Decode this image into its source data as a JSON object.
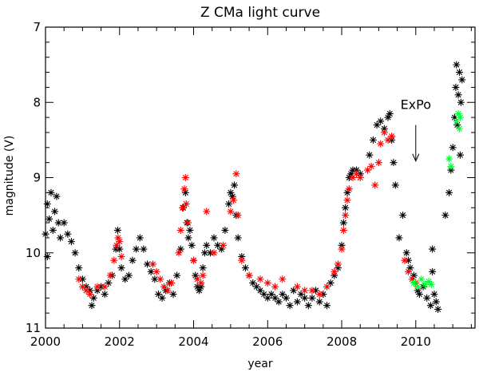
{
  "chart_data": {
    "type": "scatter",
    "title": "Z CMa light curve",
    "xlabel": "year",
    "ylabel": "magnitude (V)",
    "xlim": [
      2000,
      2011.6
    ],
    "ylim": [
      11,
      7
    ],
    "y_inverted": true,
    "x_ticks": [
      "2000",
      "2002",
      "2004",
      "2006",
      "2008",
      "2010"
    ],
    "x_tick_values": [
      2000,
      2002,
      2004,
      2006,
      2008,
      2010
    ],
    "y_ticks": [
      "7",
      "8",
      "9",
      "10",
      "11"
    ],
    "y_tick_values": [
      7,
      8,
      9,
      10,
      11
    ],
    "marker": "asterisk",
    "series": [
      {
        "name": "black",
        "color": "#000000",
        "values": [
          [
            2000.0,
            9.75
          ],
          [
            2000.05,
            9.35
          ],
          [
            2000.1,
            9.55
          ],
          [
            2000.15,
            9.2
          ],
          [
            2000.2,
            9.7
          ],
          [
            2000.25,
            9.45
          ],
          [
            2000.3,
            9.25
          ],
          [
            2000.35,
            9.6
          ],
          [
            2000.4,
            9.8
          ],
          [
            2000.05,
            10.05
          ],
          [
            2000.5,
            9.6
          ],
          [
            2000.6,
            9.75
          ],
          [
            2000.7,
            9.85
          ],
          [
            2000.8,
            10.0
          ],
          [
            2000.9,
            10.2
          ],
          [
            2001.0,
            10.35
          ],
          [
            2001.1,
            10.45
          ],
          [
            2001.2,
            10.5
          ],
          [
            2001.25,
            10.7
          ],
          [
            2001.3,
            10.6
          ],
          [
            2001.4,
            10.5
          ],
          [
            2001.5,
            10.45
          ],
          [
            2001.6,
            10.55
          ],
          [
            2001.7,
            10.4
          ],
          [
            2001.8,
            10.3
          ],
          [
            2001.9,
            9.95
          ],
          [
            2001.95,
            9.7
          ],
          [
            2002.0,
            9.95
          ],
          [
            2002.05,
            10.2
          ],
          [
            2002.15,
            10.35
          ],
          [
            2002.25,
            10.3
          ],
          [
            2002.35,
            10.1
          ],
          [
            2002.45,
            9.95
          ],
          [
            2002.55,
            9.8
          ],
          [
            2002.65,
            9.95
          ],
          [
            2002.75,
            10.15
          ],
          [
            2002.85,
            10.25
          ],
          [
            2002.95,
            10.35
          ],
          [
            2003.05,
            10.55
          ],
          [
            2003.15,
            10.6
          ],
          [
            2003.25,
            10.5
          ],
          [
            2003.35,
            10.4
          ],
          [
            2003.45,
            10.55
          ],
          [
            2003.55,
            10.3
          ],
          [
            2003.65,
            9.95
          ],
          [
            2003.72,
            9.4
          ],
          [
            2003.78,
            9.2
          ],
          [
            2003.82,
            9.6
          ],
          [
            2003.86,
            9.8
          ],
          [
            2003.9,
            9.7
          ],
          [
            2003.95,
            9.9
          ],
          [
            2004.0,
            10.1
          ],
          [
            2004.05,
            10.3
          ],
          [
            2004.1,
            10.45
          ],
          [
            2004.15,
            10.5
          ],
          [
            2004.2,
            10.45
          ],
          [
            2004.25,
            10.2
          ],
          [
            2004.3,
            10.0
          ],
          [
            2004.35,
            9.9
          ],
          [
            2004.45,
            10.0
          ],
          [
            2004.55,
            9.8
          ],
          [
            2004.65,
            9.9
          ],
          [
            2004.75,
            9.95
          ],
          [
            2004.85,
            9.7
          ],
          [
            2004.95,
            9.35
          ],
          [
            2005.0,
            9.2
          ],
          [
            2005.05,
            9.25
          ],
          [
            2005.1,
            9.1
          ],
          [
            2005.15,
            9.5
          ],
          [
            2005.2,
            9.8
          ],
          [
            2005.3,
            10.05
          ],
          [
            2005.4,
            10.2
          ],
          [
            2005.5,
            10.3
          ],
          [
            2005.6,
            10.4
          ],
          [
            2005.7,
            10.45
          ],
          [
            2005.8,
            10.5
          ],
          [
            2005.9,
            10.55
          ],
          [
            2006.0,
            10.6
          ],
          [
            2006.1,
            10.55
          ],
          [
            2006.2,
            10.6
          ],
          [
            2006.3,
            10.65
          ],
          [
            2006.4,
            10.55
          ],
          [
            2006.5,
            10.6
          ],
          [
            2006.6,
            10.7
          ],
          [
            2006.7,
            10.5
          ],
          [
            2006.8,
            10.65
          ],
          [
            2006.9,
            10.55
          ],
          [
            2007.0,
            10.6
          ],
          [
            2007.1,
            10.7
          ],
          [
            2007.2,
            10.6
          ],
          [
            2007.3,
            10.5
          ],
          [
            2007.4,
            10.65
          ],
          [
            2007.5,
            10.55
          ],
          [
            2007.6,
            10.7
          ],
          [
            2007.7,
            10.4
          ],
          [
            2007.8,
            10.3
          ],
          [
            2007.9,
            10.2
          ],
          [
            2008.0,
            9.9
          ],
          [
            2008.05,
            9.6
          ],
          [
            2008.1,
            9.4
          ],
          [
            2008.15,
            9.2
          ],
          [
            2008.2,
            9.0
          ],
          [
            2008.25,
            8.95
          ],
          [
            2008.3,
            8.9
          ],
          [
            2008.4,
            8.9
          ],
          [
            2008.5,
            8.95
          ],
          [
            2008.75,
            8.7
          ],
          [
            2008.85,
            8.5
          ],
          [
            2008.95,
            8.3
          ],
          [
            2009.05,
            8.25
          ],
          [
            2009.15,
            8.35
          ],
          [
            2009.25,
            8.2
          ],
          [
            2009.3,
            8.15
          ],
          [
            2009.35,
            8.5
          ],
          [
            2009.4,
            8.8
          ],
          [
            2009.45,
            9.1
          ],
          [
            2009.55,
            9.8
          ],
          [
            2009.65,
            9.5
          ],
          [
            2009.75,
            10.0
          ],
          [
            2009.8,
            10.1
          ],
          [
            2009.85,
            10.2
          ],
          [
            2009.95,
            10.3
          ],
          [
            2010.05,
            10.5
          ],
          [
            2010.1,
            10.55
          ],
          [
            2010.2,
            10.45
          ],
          [
            2010.3,
            10.6
          ],
          [
            2010.4,
            10.7
          ],
          [
            2010.5,
            10.55
          ],
          [
            2010.55,
            10.65
          ],
          [
            2010.6,
            10.75
          ],
          [
            2010.45,
            10.25
          ],
          [
            2010.45,
            9.95
          ],
          [
            2010.8,
            9.5
          ],
          [
            2010.9,
            9.2
          ],
          [
            2010.95,
            8.9
          ],
          [
            2011.0,
            8.6
          ],
          [
            2011.05,
            8.2
          ],
          [
            2011.08,
            7.8
          ],
          [
            2011.1,
            7.5
          ],
          [
            2011.12,
            8.3
          ],
          [
            2011.15,
            7.9
          ],
          [
            2011.18,
            7.6
          ],
          [
            2011.2,
            8.7
          ],
          [
            2011.22,
            8.0
          ],
          [
            2011.25,
            7.7
          ]
        ]
      },
      {
        "name": "red",
        "color": "#ff0000",
        "values": [
          [
            2000.9,
            10.35
          ],
          [
            2001.0,
            10.45
          ],
          [
            2001.1,
            10.5
          ],
          [
            2001.2,
            10.55
          ],
          [
            2001.4,
            10.45
          ],
          [
            2001.6,
            10.45
          ],
          [
            2001.75,
            10.3
          ],
          [
            2001.85,
            10.1
          ],
          [
            2001.92,
            9.9
          ],
          [
            2001.96,
            9.8
          ],
          [
            2002.0,
            9.85
          ],
          [
            2002.05,
            10.05
          ],
          [
            2002.9,
            10.15
          ],
          [
            2003.0,
            10.25
          ],
          [
            2003.1,
            10.35
          ],
          [
            2003.2,
            10.45
          ],
          [
            2003.3,
            10.5
          ],
          [
            2003.4,
            10.4
          ],
          [
            2003.6,
            10.0
          ],
          [
            2003.65,
            9.7
          ],
          [
            2003.7,
            9.4
          ],
          [
            2003.75,
            9.15
          ],
          [
            2003.78,
            9.0
          ],
          [
            2003.8,
            9.35
          ],
          [
            2003.85,
            9.6
          ],
          [
            2004.0,
            10.1
          ],
          [
            2004.1,
            10.35
          ],
          [
            2004.2,
            10.4
          ],
          [
            2004.25,
            10.3
          ],
          [
            2004.35,
            9.45
          ],
          [
            2004.55,
            10.0
          ],
          [
            2004.8,
            9.9
          ],
          [
            2005.0,
            9.45
          ],
          [
            2005.08,
            9.3
          ],
          [
            2005.15,
            8.95
          ],
          [
            2005.2,
            9.5
          ],
          [
            2005.3,
            10.1
          ],
          [
            2005.5,
            10.3
          ],
          [
            2005.8,
            10.35
          ],
          [
            2006.0,
            10.4
          ],
          [
            2006.2,
            10.45
          ],
          [
            2006.4,
            10.35
          ],
          [
            2006.8,
            10.45
          ],
          [
            2007.0,
            10.5
          ],
          [
            2007.2,
            10.5
          ],
          [
            2007.4,
            10.55
          ],
          [
            2007.6,
            10.45
          ],
          [
            2007.8,
            10.25
          ],
          [
            2007.9,
            10.15
          ],
          [
            2008.0,
            9.95
          ],
          [
            2008.05,
            9.7
          ],
          [
            2008.1,
            9.5
          ],
          [
            2008.15,
            9.3
          ],
          [
            2008.2,
            9.15
          ],
          [
            2008.3,
            9.0
          ],
          [
            2008.4,
            8.95
          ],
          [
            2008.5,
            9.0
          ],
          [
            2008.7,
            8.9
          ],
          [
            2008.8,
            8.85
          ],
          [
            2008.9,
            9.1
          ],
          [
            2009.0,
            8.8
          ],
          [
            2009.05,
            8.55
          ],
          [
            2009.15,
            8.4
          ],
          [
            2009.25,
            8.5
          ],
          [
            2009.35,
            8.45
          ],
          [
            2009.7,
            10.1
          ],
          [
            2009.8,
            10.25
          ],
          [
            2009.9,
            10.35
          ],
          [
            2010.0,
            10.4
          ]
        ]
      },
      {
        "name": "green",
        "color": "#00ff33",
        "values": [
          [
            2009.95,
            10.4
          ],
          [
            2010.05,
            10.45
          ],
          [
            2010.15,
            10.35
          ],
          [
            2010.25,
            10.42
          ],
          [
            2010.35,
            10.38
          ],
          [
            2010.42,
            10.42
          ],
          [
            2010.9,
            8.75
          ],
          [
            2010.95,
            8.85
          ],
          [
            2011.1,
            8.25
          ],
          [
            2011.15,
            8.15
          ],
          [
            2011.18,
            8.35
          ],
          [
            2011.2,
            8.2
          ]
        ]
      }
    ],
    "annotations": [
      {
        "text": "ExPo",
        "arrow_from": [
          2010.0,
          8.3
        ],
        "arrow_to": [
          2010.0,
          8.78
        ]
      }
    ]
  }
}
